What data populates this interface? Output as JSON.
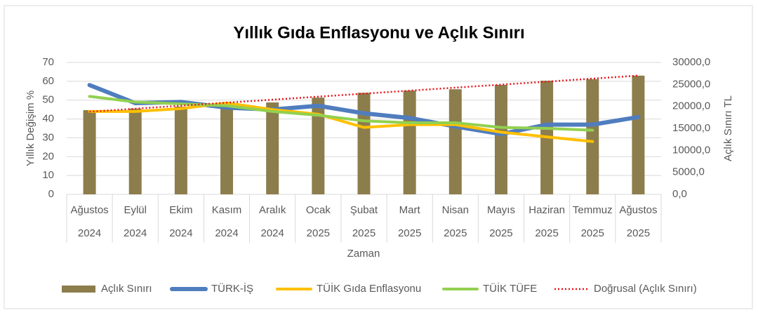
{
  "chart_data": {
    "type": "bar-line",
    "title": "Yıllık Gıda Enflasyonu ve Açlık Sınırı",
    "x_label": "Zaman",
    "y_label": "Yıllık Değişim %",
    "y2_label": "Açlık Sınırı TL",
    "categories": [
      [
        "Ağustos",
        "2024"
      ],
      [
        "Eylül",
        "2024"
      ],
      [
        "Ekim",
        "2024"
      ],
      [
        "Kasım",
        "2024"
      ],
      [
        "Aralık",
        "2024"
      ],
      [
        "Ocak",
        "2025"
      ],
      [
        "Şubat",
        "2025"
      ],
      [
        "Mart",
        "2025"
      ],
      [
        "Nisan",
        "2025"
      ],
      [
        "Mayıs",
        "2025"
      ],
      [
        "Haziran",
        "2025"
      ],
      [
        "Temmuz",
        "2025"
      ],
      [
        "Ağustos",
        "2025"
      ]
    ],
    "ylim": [
      0,
      70
    ],
    "yticks": [
      0,
      10,
      20,
      30,
      40,
      50,
      60,
      70
    ],
    "y2lim": [
      0,
      30000
    ],
    "y2ticks": [
      {
        "value": 0,
        "label": "0,0"
      },
      {
        "value": 5000,
        "label": "5000,0"
      },
      {
        "value": 10000,
        "label": "10000,0"
      },
      {
        "value": 15000,
        "label": "15000,0"
      },
      {
        "value": 20000,
        "label": "20000,0"
      },
      {
        "value": 25000,
        "label": "25000,0"
      },
      {
        "value": 30000,
        "label": "30000,0"
      }
    ],
    "grid": true,
    "legend": "bottom",
    "series": [
      {
        "name": "Açlık Sınırı",
        "type": "bar",
        "axis": "y2",
        "color": "#8c7d4c",
        "values": [
          19150,
          19500,
          19950,
          20250,
          20900,
          22000,
          23100,
          23600,
          23900,
          24900,
          25850,
          26200,
          27000
        ]
      },
      {
        "name": "TÜRK-İŞ",
        "type": "line",
        "color": "#4f7dbe",
        "width": 6,
        "values": [
          58,
          48.4,
          49,
          46,
          45,
          47,
          43,
          40.5,
          36,
          32,
          37,
          37,
          41
        ]
      },
      {
        "name": "TÜİK Gıda Enflasyonu",
        "type": "line",
        "color": "#ffc000",
        "width": 4,
        "values": [
          44,
          44,
          45.5,
          48.5,
          45,
          42.5,
          35.5,
          37,
          37,
          33,
          30.5,
          28,
          null
        ]
      },
      {
        "name": "TÜİK TÜFE",
        "type": "line",
        "color": "#92d050",
        "width": 4,
        "values": [
          52,
          49,
          48,
          47,
          44,
          42,
          39,
          38,
          38,
          35.5,
          35,
          34,
          null
        ]
      },
      {
        "name": "Doğrusal (Açlık Sınırı)",
        "type": "line",
        "axis": "y2",
        "color": "#e8141b",
        "width": 2.5,
        "dash": "dotted",
        "values": [
          18800,
          19480,
          20170,
          20850,
          21530,
          22220,
          22900,
          23580,
          24270,
          24950,
          25630,
          26320,
          27000
        ]
      }
    ]
  }
}
